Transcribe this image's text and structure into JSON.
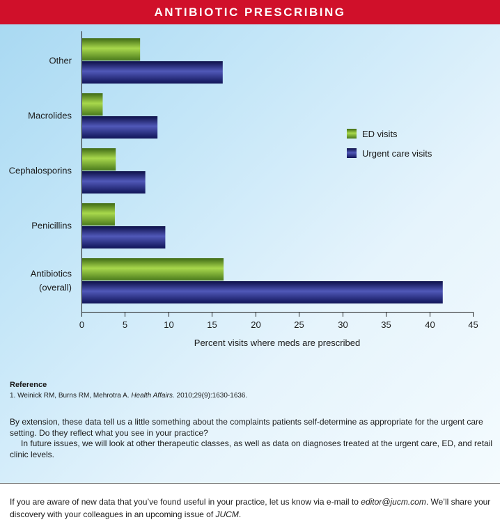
{
  "header": {
    "title": "ANTIBIOTIC PRESCRIBING"
  },
  "chart_data": {
    "type": "bar",
    "orientation": "horizontal",
    "categories": [
      "Other",
      "Macrolides",
      "Cephalosporins",
      "Penicillins",
      "Antibiotics (overall)"
    ],
    "category_lines": [
      [
        "Other"
      ],
      [
        "Macrolides"
      ],
      [
        "Cephalosporins"
      ],
      [
        "Penicillins"
      ],
      [
        "Antibiotics",
        "(overall)"
      ]
    ],
    "series": [
      {
        "name": "ED visits",
        "values": [
          6.7,
          2.4,
          3.9,
          3.8,
          16.3
        ],
        "color": "#6a9a2c"
      },
      {
        "name": "Urgent care visits",
        "values": [
          16.2,
          8.7,
          7.3,
          9.6,
          41.5
        ],
        "color": "#1a2070"
      }
    ],
    "xlabel": "Percent visits where meds are prescribed",
    "ylabel": "",
    "xlim": [
      0,
      45
    ],
    "xticks": [
      "0",
      "5",
      "10",
      "15",
      "20",
      "25",
      "30",
      "35",
      "40",
      "45"
    ],
    "grid": false,
    "legend_position": "right"
  },
  "reference": {
    "heading": "Reference",
    "citation_prefix": "1. Weinick RM, Burns RM, Mehrotra A. ",
    "citation_journal": "Health Affairs.",
    "citation_suffix": " 2010;29(9):1630-1636."
  },
  "body": {
    "paragraph1": "By extension, these data tell us a little something about the complaints patients self-determine as appropriate for the urgent care setting. Do they reflect what you see in your practice?",
    "paragraph2": "In future issues, we will look at other therapeutic classes, as well as data on diagnoses treated at the urgent care, ED, and retail clinic levels."
  },
  "footer": {
    "text1": "If you are aware of new data that you’ve found useful in your practice, let us know via e-mail to ",
    "email": "editor@jucm.com",
    "text2": ". We’ll share your discovery with your colleagues in an upcoming issue of ",
    "journal": "JUCM",
    "text3": "."
  }
}
